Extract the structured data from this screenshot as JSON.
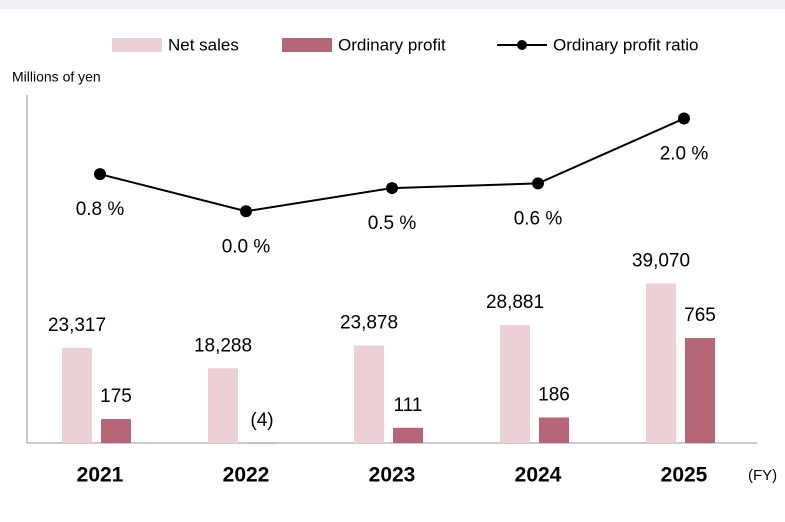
{
  "chart_data": {
    "type": "bar_line",
    "y_axis_label": "Millions of yen",
    "x_axis_label": "(FY)",
    "categories": [
      "2021",
      "2022",
      "2023",
      "2024",
      "2025"
    ],
    "ylim": [
      0,
      84000
    ],
    "y2lim": [
      0,
      2500
    ],
    "y3lim": [
      -5,
      2.4
    ],
    "series": [
      {
        "name": "Net sales",
        "type": "bar",
        "color": "#ebd0d6",
        "values": [
          23317,
          18288,
          23878,
          28881,
          39070
        ],
        "value_labels": [
          "23,317",
          "18,288",
          "23,878",
          "28,881",
          "39,070"
        ]
      },
      {
        "name": "Ordinary profit",
        "type": "bar",
        "axis": "y2",
        "color": "#b56677",
        "values": [
          175,
          -4,
          111,
          186,
          765
        ],
        "value_labels": [
          "175",
          "(4)",
          "111",
          "186",
          "765"
        ]
      },
      {
        "name": "Ordinary profit ratio",
        "type": "line",
        "axis": "y3",
        "color": "#000000",
        "values": [
          0.8,
          0.0,
          0.5,
          0.6,
          2.0
        ],
        "value_labels": [
          "0.8 %",
          "0.0 %",
          "0.5 %",
          "0.6 %",
          "2.0 %"
        ]
      }
    ]
  }
}
